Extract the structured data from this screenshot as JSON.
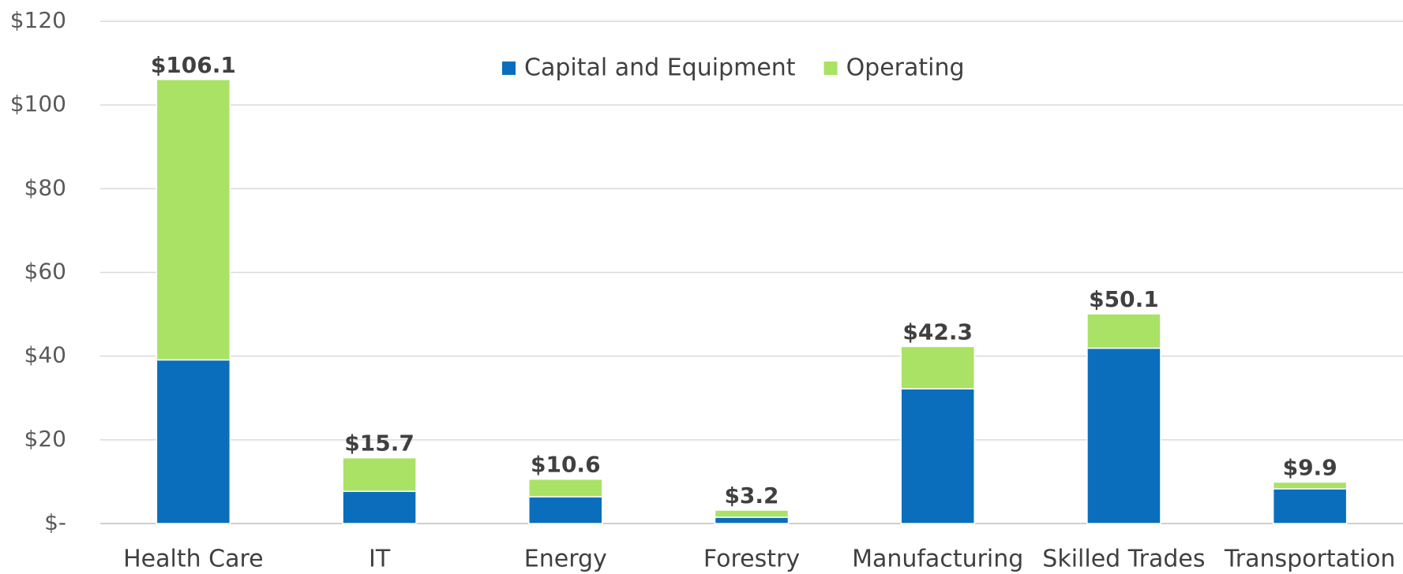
{
  "chart_data": {
    "type": "stacked_bar",
    "categories": [
      "Health Care",
      "IT",
      "Energy",
      "Forestry",
      "Manufacturing",
      "Skilled Trades",
      "Transportation"
    ],
    "series": [
      {
        "name": "Capital and Equipment",
        "color": "#0a6ebd",
        "values": [
          39.1,
          7.7,
          6.4,
          1.5,
          32.2,
          41.9,
          8.3
        ]
      },
      {
        "name": "Operating",
        "color": "#a9e265",
        "values": [
          67.0,
          8.0,
          4.2,
          1.7,
          10.1,
          8.2,
          1.6
        ]
      }
    ],
    "totals": [
      106.1,
      15.7,
      10.6,
      3.2,
      42.3,
      50.1,
      9.9
    ],
    "total_labels": [
      "$106.1",
      "$15.7",
      "$10.6",
      "$3.2",
      "$42.3",
      "$50.1",
      "$9.9"
    ],
    "ylim": [
      0,
      120
    ],
    "yticks": [
      {
        "value": 0,
        "label": "$-"
      },
      {
        "value": 20,
        "label": "$20"
      },
      {
        "value": 40,
        "label": "$40"
      },
      {
        "value": 60,
        "label": "$60"
      },
      {
        "value": 80,
        "label": "$80"
      },
      {
        "value": 100,
        "label": "$100"
      },
      {
        "value": 120,
        "label": "$120"
      }
    ],
    "grid": true,
    "legend": "top"
  }
}
